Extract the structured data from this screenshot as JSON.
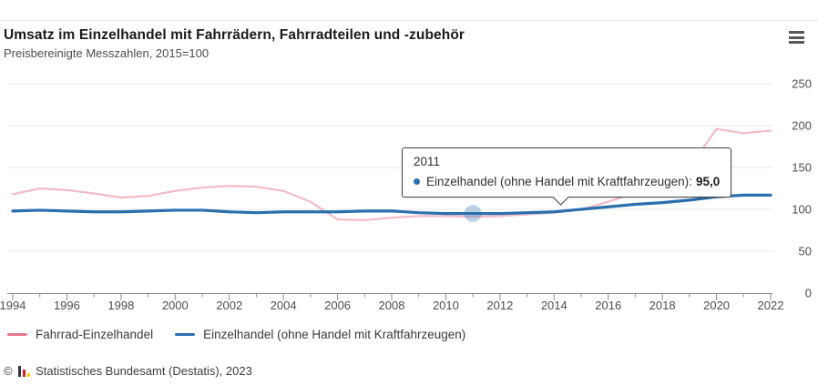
{
  "tooltip": {
    "year": "2011",
    "series_label": "Einzelhandel (ohne Handel mit Kraftfahrzeugen):",
    "value": "95,0"
  },
  "footer": {
    "copyright": "©",
    "source": "Statistisches Bundesamt (Destatis), 2023",
    "logo_icon": "destatis-bar-chart-logo",
    "logo_colors": [
      "#35353f",
      "#cc2030",
      "#ffcc00"
    ]
  },
  "menu_icon": "hamburger-menu-icon",
  "chart_data": {
    "type": "line",
    "title": "Umsatz im Einzelhandel mit Fahrrädern, Fahrradteilen und -zubehör",
    "subtitle": "Preisbereinigte Messzahlen, 2015=100",
    "xlabel": "",
    "ylabel": "",
    "x": [
      1994,
      1995,
      1996,
      1997,
      1998,
      1999,
      2000,
      2001,
      2002,
      2003,
      2004,
      2005,
      2006,
      2007,
      2008,
      2009,
      2010,
      2011,
      2012,
      2013,
      2014,
      2015,
      2016,
      2017,
      2018,
      2019,
      2020,
      2021,
      2022
    ],
    "x_tick_labels": [
      "1994",
      "1996",
      "1998",
      "2000",
      "2002",
      "2004",
      "2006",
      "2008",
      "2010",
      "2012",
      "2014",
      "2016",
      "2018",
      "2020",
      "2022"
    ],
    "y_ticks": [
      0,
      50,
      100,
      150,
      200,
      250
    ],
    "ylim": [
      0,
      250
    ],
    "grid": true,
    "y_axis_side": "right",
    "legend_position": "bottom",
    "series": [
      {
        "key": "fahrrad-einzelhandel",
        "name": "Fahrrad-Einzelhandel",
        "color": "#e5788f",
        "line_opacity": 0.5,
        "values": [
          118,
          125,
          123,
          119,
          114,
          116,
          122,
          126,
          128,
          127,
          122,
          109,
          88,
          87,
          90,
          92,
          92,
          91,
          92,
          94,
          96,
          100,
          109,
          120,
          133,
          150,
          196,
          191,
          194
        ]
      },
      {
        "key": "einzelhandel-ohne-kfz",
        "name": "Einzelhandel (ohne Handel mit Kraftfahrzeugen)",
        "color": "#2a6fae",
        "line_opacity": 1,
        "values": [
          98,
          99,
          98,
          97,
          97,
          98,
          99,
          99,
          97,
          96,
          97,
          97,
          97,
          98,
          98,
          96,
          95,
          95,
          95,
          96,
          97,
          100,
          103,
          106,
          108,
          111,
          115,
          117,
          117
        ]
      }
    ],
    "highlight": {
      "x": 2011,
      "series_key": "einzelhandel-ohne-kfz",
      "value": 95.0
    }
  }
}
